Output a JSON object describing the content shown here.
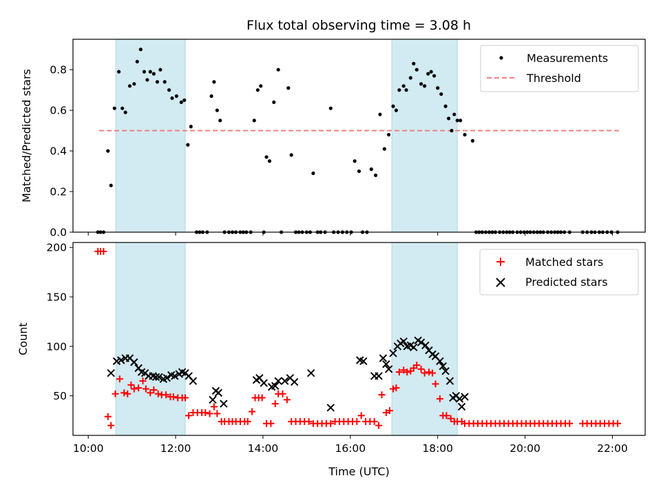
{
  "chart_data": {
    "type": "scatter",
    "title": "Flux total observing time = 3.08 h",
    "xlabel": "Time (UTC)",
    "x_tick_labels": [
      "10:00",
      "12:00",
      "14:00",
      "16:00",
      "18:00",
      "20:00",
      "22:00"
    ],
    "x_ticks_hours": [
      10,
      12,
      14,
      16,
      18,
      20,
      22
    ],
    "xlim_hours": [
      9.65,
      22.75
    ],
    "shaded_intervals_hours": [
      [
        10.63,
        12.22
      ],
      [
        16.95,
        18.45
      ]
    ],
    "shade_color": "#add8e6",
    "panels": [
      {
        "ylabel": "Matched/Predicted stars",
        "ylim": [
          0,
          0.95
        ],
        "y_ticks": [
          0.0,
          0.2,
          0.4,
          0.6,
          0.8
        ],
        "y_tick_labels": [
          "0.0",
          "0.2",
          "0.4",
          "0.6",
          "0.8"
        ],
        "legend_position": "top-right",
        "threshold": {
          "name": "Threshold",
          "y": 0.5,
          "x_range_hours": [
            10.25,
            22.15
          ],
          "color": "#f08080",
          "style": "dashed"
        },
        "series": [
          {
            "name": "Measurements",
            "marker": "dot",
            "color": "#000000",
            "x": [
              10.22,
              10.28,
              10.35,
              10.45,
              10.52,
              10.6,
              10.7,
              10.78,
              10.85,
              10.95,
              11.05,
              11.12,
              11.2,
              11.28,
              11.35,
              11.42,
              11.5,
              11.58,
              11.65,
              11.75,
              11.85,
              11.92,
              12.02,
              12.13,
              12.2,
              12.28,
              12.35,
              12.48,
              12.55,
              12.62,
              12.72,
              12.82,
              12.88,
              12.95,
              13.02,
              13.12,
              13.22,
              13.3,
              13.38,
              13.48,
              13.55,
              13.62,
              13.72,
              13.8,
              13.88,
              13.95,
              14.02,
              14.08,
              14.15,
              14.25,
              14.35,
              14.42,
              14.58,
              14.65,
              14.75,
              14.82,
              14.9,
              15.0,
              15.08,
              15.15,
              15.25,
              15.32,
              15.42,
              15.55,
              15.62,
              15.72,
              15.82,
              15.92,
              16.02,
              16.1,
              16.2,
              16.28,
              16.38,
              16.48,
              16.58,
              16.68,
              16.78,
              16.88,
              16.98,
              17.05,
              17.12,
              17.22,
              17.28,
              17.38,
              17.45,
              17.52,
              17.62,
              17.7,
              17.78,
              17.85,
              17.92,
              18.0,
              18.08,
              18.18,
              18.25,
              18.32,
              18.38,
              18.45,
              18.52,
              18.62,
              18.8,
              18.88,
              18.95,
              19.02,
              19.1,
              19.18,
              19.25,
              19.32,
              19.42,
              19.5,
              19.58,
              19.65,
              19.72,
              19.82,
              19.9,
              19.98,
              20.05,
              20.12,
              20.2,
              20.28,
              20.35,
              20.42,
              20.52,
              20.6,
              20.68,
              20.75,
              20.82,
              20.9,
              21.02,
              21.32,
              21.42,
              21.52,
              21.6,
              21.7,
              21.78,
              21.88,
              21.98,
              22.12
            ],
            "y": [
              0.0,
              0.0,
              0.0,
              0.4,
              0.23,
              0.61,
              0.79,
              0.61,
              0.59,
              0.72,
              0.73,
              0.84,
              0.9,
              0.79,
              0.75,
              0.79,
              0.78,
              0.74,
              0.8,
              0.74,
              0.7,
              0.66,
              0.67,
              0.64,
              0.65,
              0.43,
              0.52,
              0.0,
              0.0,
              0.0,
              0.0,
              0.67,
              0.74,
              0.6,
              0.55,
              0.0,
              0.0,
              0.0,
              0.0,
              0.0,
              0.0,
              0.0,
              0.0,
              0.55,
              0.7,
              0.72,
              0.0,
              0.37,
              0.35,
              0.64,
              0.8,
              0.0,
              0.71,
              0.38,
              0.0,
              0.0,
              0.0,
              0.0,
              0.0,
              0.29,
              0.0,
              0.0,
              0.0,
              0.61,
              0.0,
              0.0,
              0.0,
              0.0,
              0.0,
              0.35,
              0.3,
              0.0,
              0.0,
              0.31,
              0.28,
              0.58,
              0.41,
              0.48,
              0.62,
              0.6,
              0.7,
              0.72,
              0.7,
              0.76,
              0.83,
              0.8,
              0.73,
              0.72,
              0.78,
              0.79,
              0.77,
              0.71,
              0.68,
              0.62,
              0.56,
              0.5,
              0.58,
              0.55,
              0.55,
              0.48,
              0.45,
              0.0,
              0.0,
              0.0,
              0.0,
              0.0,
              0.0,
              0.0,
              0.0,
              0.0,
              0.0,
              0.0,
              0.0,
              0.0,
              0.0,
              0.0,
              0.0,
              0.0,
              0.0,
              0.0,
              0.0,
              0.0,
              0.0,
              0.0,
              0.0,
              0.0,
              0.0,
              0.0,
              0.0,
              0.0,
              0.0,
              0.0,
              0.0,
              0.0,
              0.0,
              0.0,
              0.0,
              0.0
            ]
          }
        ]
      },
      {
        "ylabel": "Count",
        "ylim": [
          10,
          205
        ],
        "y_ticks": [
          50,
          100,
          150,
          200
        ],
        "y_tick_labels": [
          "50",
          "100",
          "150",
          "200"
        ],
        "legend_position": "top-right",
        "series": [
          {
            "name": "Matched stars",
            "marker": "plus",
            "color": "#ff0000",
            "x": [
              10.22,
              10.28,
              10.35,
              10.45,
              10.52,
              10.62,
              10.72,
              10.82,
              10.9,
              10.98,
              11.05,
              11.15,
              11.25,
              11.32,
              11.42,
              11.5,
              11.6,
              11.68,
              11.78,
              11.88,
              11.95,
              12.05,
              12.15,
              12.22,
              12.3,
              12.4,
              12.5,
              12.6,
              12.68,
              12.78,
              12.88,
              12.95,
              13.05,
              13.12,
              13.22,
              13.3,
              13.38,
              13.48,
              13.58,
              13.65,
              13.75,
              13.82,
              13.9,
              13.98,
              14.08,
              14.18,
              14.28,
              14.35,
              14.45,
              14.55,
              14.65,
              14.75,
              14.85,
              14.95,
              15.05,
              15.15,
              15.25,
              15.35,
              15.45,
              15.55,
              15.65,
              15.75,
              15.85,
              15.95,
              16.05,
              16.15,
              16.25,
              16.35,
              16.45,
              16.55,
              16.65,
              16.72,
              16.82,
              16.9,
              16.98,
              17.05,
              17.12,
              17.22,
              17.3,
              17.38,
              17.45,
              17.52,
              17.62,
              17.7,
              17.8,
              17.88,
              17.95,
              18.05,
              18.12,
              18.2,
              18.3,
              18.38,
              18.45,
              18.55,
              18.62,
              18.72,
              18.82,
              18.92,
              19.02,
              19.12,
              19.22,
              19.32,
              19.42,
              19.52,
              19.62,
              19.72,
              19.82,
              19.92,
              20.02,
              20.12,
              20.22,
              20.32,
              20.42,
              20.52,
              20.62,
              20.72,
              20.82,
              20.92,
              21.02,
              21.32,
              21.42,
              21.52,
              21.62,
              21.72,
              21.82,
              21.92,
              22.02,
              22.12
            ],
            "y": [
              196,
              196,
              196,
              29,
              20,
              52,
              67,
              53,
              52,
              61,
              57,
              58,
              65,
              57,
              53,
              56,
              52,
              51,
              51,
              49,
              49,
              48,
              48,
              48,
              30,
              33,
              33,
              33,
              33,
              32,
              39,
              32,
              24,
              24,
              24,
              24,
              24,
              24,
              24,
              24,
              34,
              48,
              48,
              48,
              22,
              22,
              42,
              52,
              52,
              46,
              24,
              24,
              24,
              24,
              24,
              22,
              22,
              22,
              22,
              22,
              24,
              24,
              24,
              24,
              24,
              24,
              30,
              24,
              24,
              24,
              20,
              51,
              33,
              35,
              57,
              58,
              74,
              76,
              74,
              75,
              78,
              81,
              77,
              73,
              74,
              73,
              62,
              47,
              30,
              30,
              27,
              24,
              24,
              24,
              22,
              22,
              22,
              22,
              22,
              22,
              22,
              22,
              22,
              22,
              22,
              22,
              22,
              22,
              22,
              22,
              22,
              22,
              22,
              22,
              22,
              22,
              22,
              22,
              22,
              22,
              22,
              22,
              22,
              22,
              22,
              22,
              22,
              22
            ]
          },
          {
            "name": "Predicted stars",
            "marker": "x",
            "color": "#000000",
            "x": [
              10.52,
              10.65,
              10.75,
              10.85,
              10.95,
              11.05,
              11.15,
              11.22,
              11.3,
              11.38,
              11.48,
              11.55,
              11.62,
              11.72,
              11.8,
              11.9,
              11.98,
              12.08,
              12.15,
              12.22,
              12.3,
              12.4,
              12.85,
              12.92,
              12.98,
              13.1,
              13.85,
              13.92,
              14.02,
              14.2,
              14.28,
              14.35,
              14.5,
              14.62,
              14.72,
              15.1,
              15.55,
              16.22,
              16.3,
              16.55,
              16.65,
              16.75,
              16.82,
              16.88,
              16.98,
              17.08,
              17.15,
              17.22,
              17.3,
              17.38,
              17.45,
              17.55,
              17.62,
              17.72,
              17.8,
              17.88,
              17.95,
              18.05,
              18.12,
              18.18,
              18.28,
              18.35,
              18.42,
              18.5,
              18.55,
              18.62
            ],
            "y": [
              73,
              85,
              86,
              88,
              88,
              84,
              78,
              74,
              73,
              70,
              70,
              69,
              69,
              67,
              68,
              71,
              70,
              72,
              74,
              73,
              70,
              65,
              46,
              55,
              53,
              42,
              66,
              68,
              63,
              59,
              60,
              65,
              65,
              68,
              64,
              73,
              38,
              86,
              85,
              70,
              70,
              88,
              82,
              77,
              93,
              100,
              103,
              105,
              100,
              101,
              99,
              106,
              104,
              101,
              96,
              92,
              90,
              85,
              80,
              75,
              65,
              48,
              50,
              47,
              39,
              49
            ]
          }
        ]
      }
    ]
  }
}
